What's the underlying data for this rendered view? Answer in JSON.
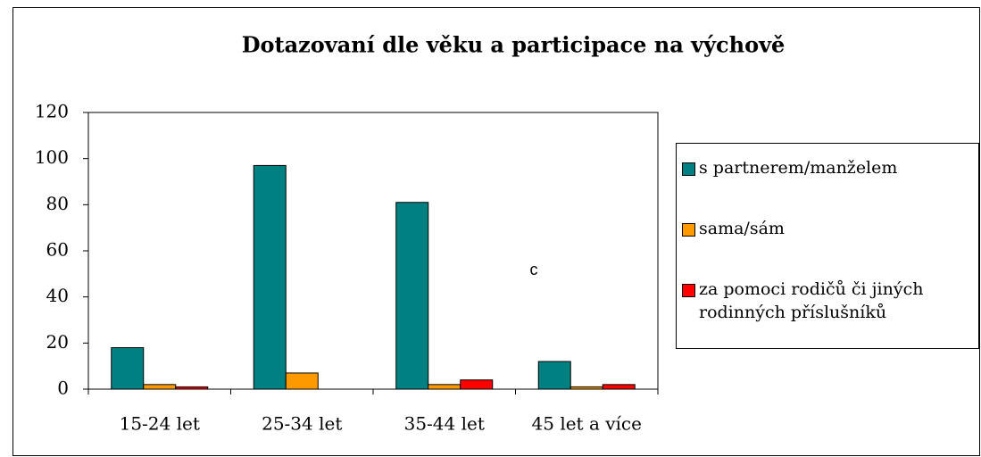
{
  "chart_data": {
    "type": "bar",
    "title": "Dotazovaní dle věku a participace na výchově",
    "categories": [
      "15-24 let",
      "25-34 let",
      "35-44 let",
      "45 let a více"
    ],
    "series": [
      {
        "name": "s partnerem/manželem",
        "color": "#008080",
        "values": [
          18,
          97,
          81,
          12
        ]
      },
      {
        "name": "sama/sám",
        "color": "#ff9900",
        "values": [
          2,
          7,
          2,
          1
        ]
      },
      {
        "name": "za pomoci rodičů či jiných rodinných příslušníků",
        "color": "#ff0000",
        "values": [
          1,
          0,
          4,
          2
        ]
      }
    ],
    "ylim": [
      0,
      120
    ],
    "yticks": [
      0,
      20,
      40,
      60,
      80,
      100,
      120
    ],
    "legend": "right",
    "annotation": "c"
  }
}
